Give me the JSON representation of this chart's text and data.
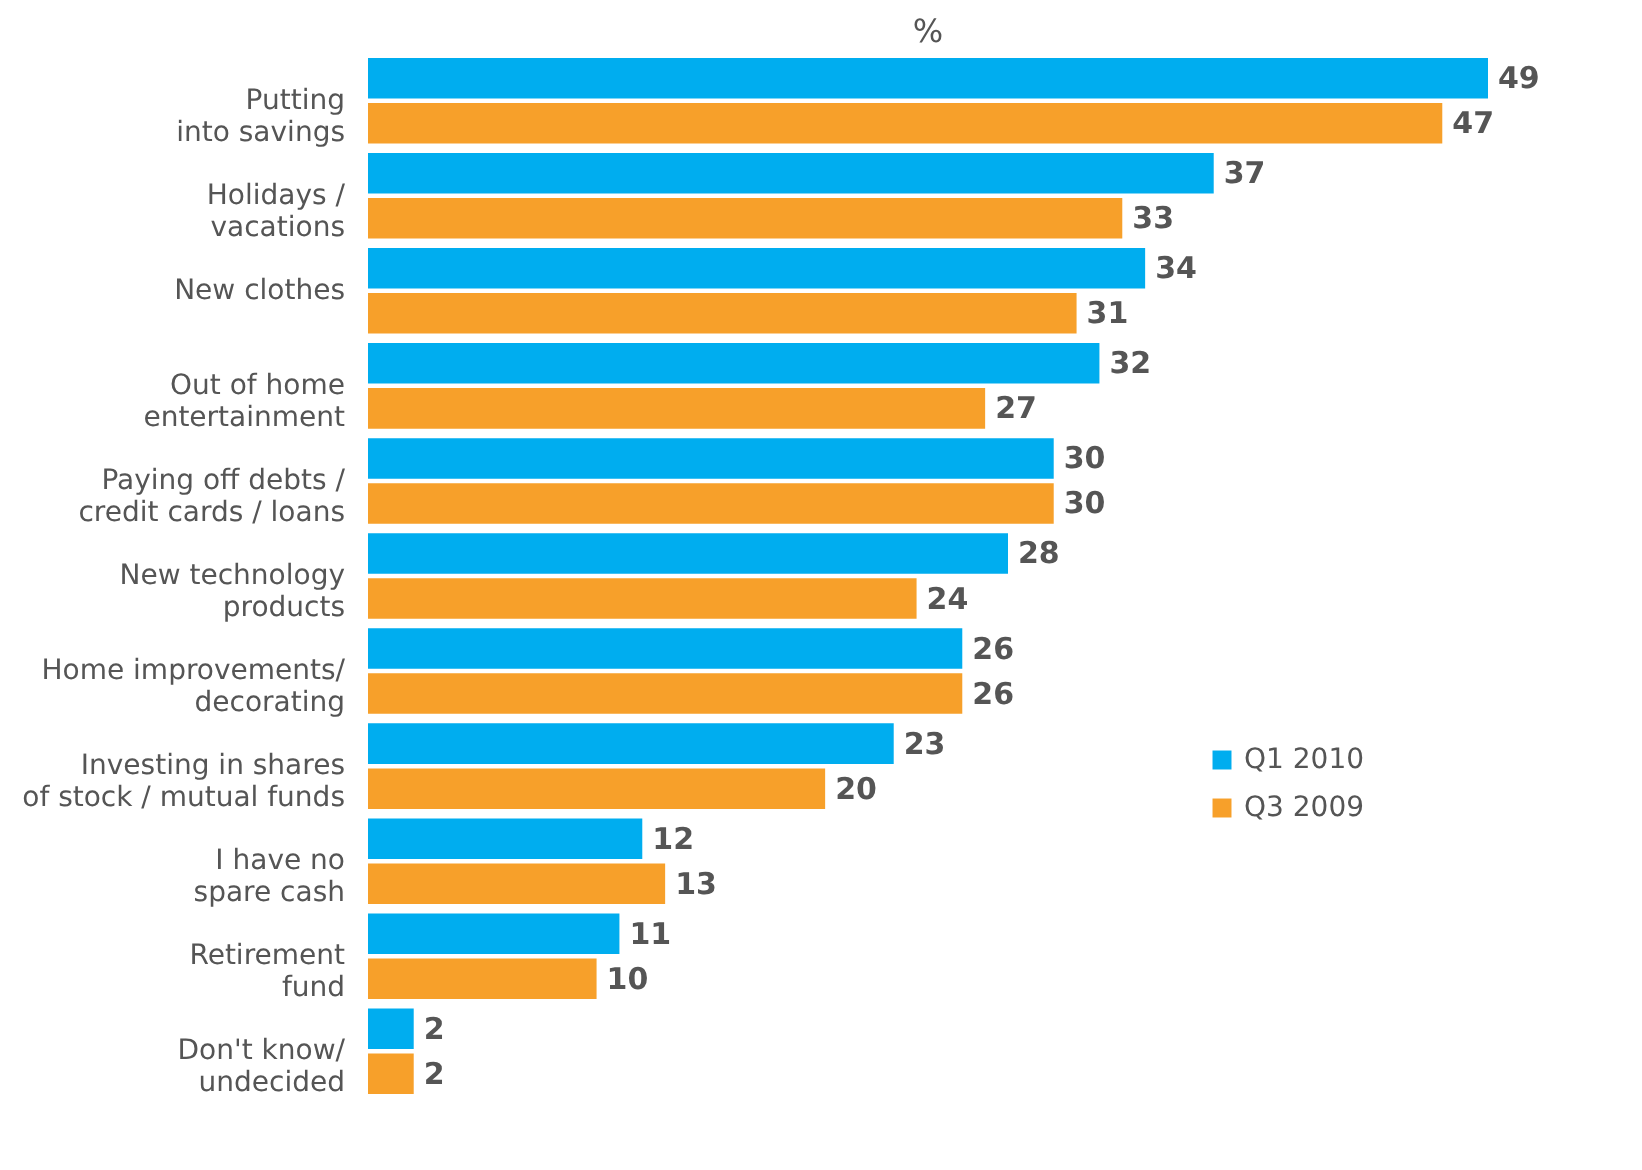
{
  "chart_data": {
    "type": "bar",
    "orientation": "horizontal",
    "title": "%",
    "categories": [
      "Putting\ninto savings",
      "Holidays /\nvacations",
      "New clothes",
      "Out of home\nentertainment",
      "Paying off debts /\ncredit cards / loans",
      "New technology\nproducts",
      "Home improvements/\ndecorating",
      "Investing in shares\nof stock / mutual funds",
      "I have no\nspare cash",
      "Retirement\nfund",
      "Don't know/\nundecided"
    ],
    "series": [
      {
        "name": "Q1 2010",
        "color": "#00adef",
        "values": [
          49,
          37,
          34,
          32,
          30,
          28,
          26,
          23,
          12,
          11,
          2
        ]
      },
      {
        "name": "Q3 2009",
        "color": "#f7a02a",
        "values": [
          47,
          33,
          31,
          27,
          30,
          24,
          26,
          20,
          13,
          10,
          2
        ]
      }
    ],
    "data_labels": true,
    "legend": "right"
  }
}
